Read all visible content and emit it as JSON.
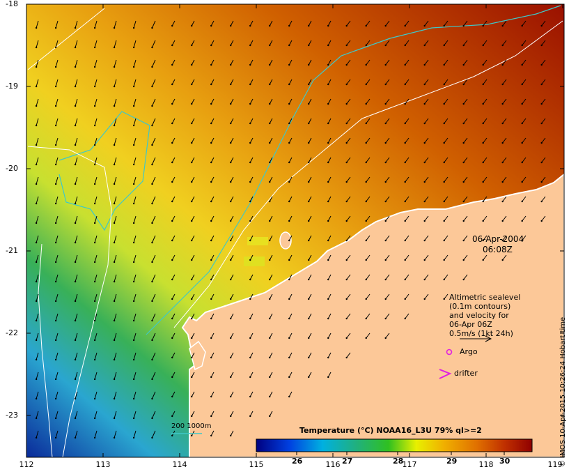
{
  "map": {
    "y_ticks": [
      "-18",
      "-19",
      "-20",
      "-21",
      "-22",
      "-23"
    ],
    "x_ticks": [
      "112",
      "113",
      "114",
      "115",
      "116",
      "117",
      "118",
      "119"
    ],
    "date": "06-Apr-2004",
    "time": "06:08Z",
    "info_lines": [
      "Altimetric sealevel",
      "(0.1m contours)",
      "and velocity for",
      "06-Apr 06Z",
      "0.5m/s (1kt 24h)"
    ],
    "argo_label": "Argo",
    "drifter_label": "drifter",
    "isobath_label": "200  1000m",
    "colorbar_title": "Temperature (°C) NOAA16_L3U 79% ql>=2",
    "colorbar_ticks": [
      "26",
      "27",
      "28",
      "29",
      "30"
    ],
    "credit": "© IMOS 10-Apr-2015 10:26:24 Hobart time",
    "colors": {
      "land": "#fcc898",
      "argo": "#e020e0",
      "isobath": "#3ec8c8",
      "sealevel_contour": "#ffffff"
    }
  }
}
